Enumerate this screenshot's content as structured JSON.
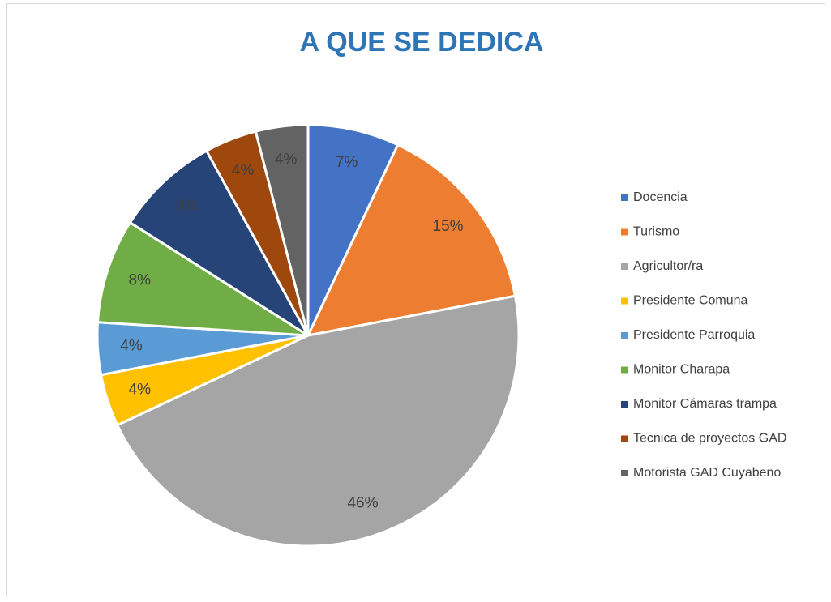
{
  "chart_data": {
    "type": "pie",
    "title": "A QUE SE DEDICA",
    "categories": [
      "Docencia",
      "Turismo",
      "Agricultor/ra",
      "Presidente Comuna",
      "Presidente Parroquia",
      "Monitor Charapa",
      "Monitor Cámaras trampa",
      "Tecnica de proyectos GAD",
      "Motorista GAD Cuyabeno"
    ],
    "values": [
      7,
      15,
      46,
      4,
      4,
      8,
      8,
      4,
      4
    ],
    "value_labels": [
      "7%",
      "15%",
      "46%",
      "4%",
      "4%",
      "8%",
      "8%",
      "4%",
      "4%"
    ],
    "colors": [
      "#4472c4",
      "#ed7d31",
      "#a5a5a5",
      "#ffc000",
      "#5b9bd5",
      "#70ad47",
      "#264478",
      "#9e480e",
      "#636363"
    ],
    "legend": "right"
  }
}
